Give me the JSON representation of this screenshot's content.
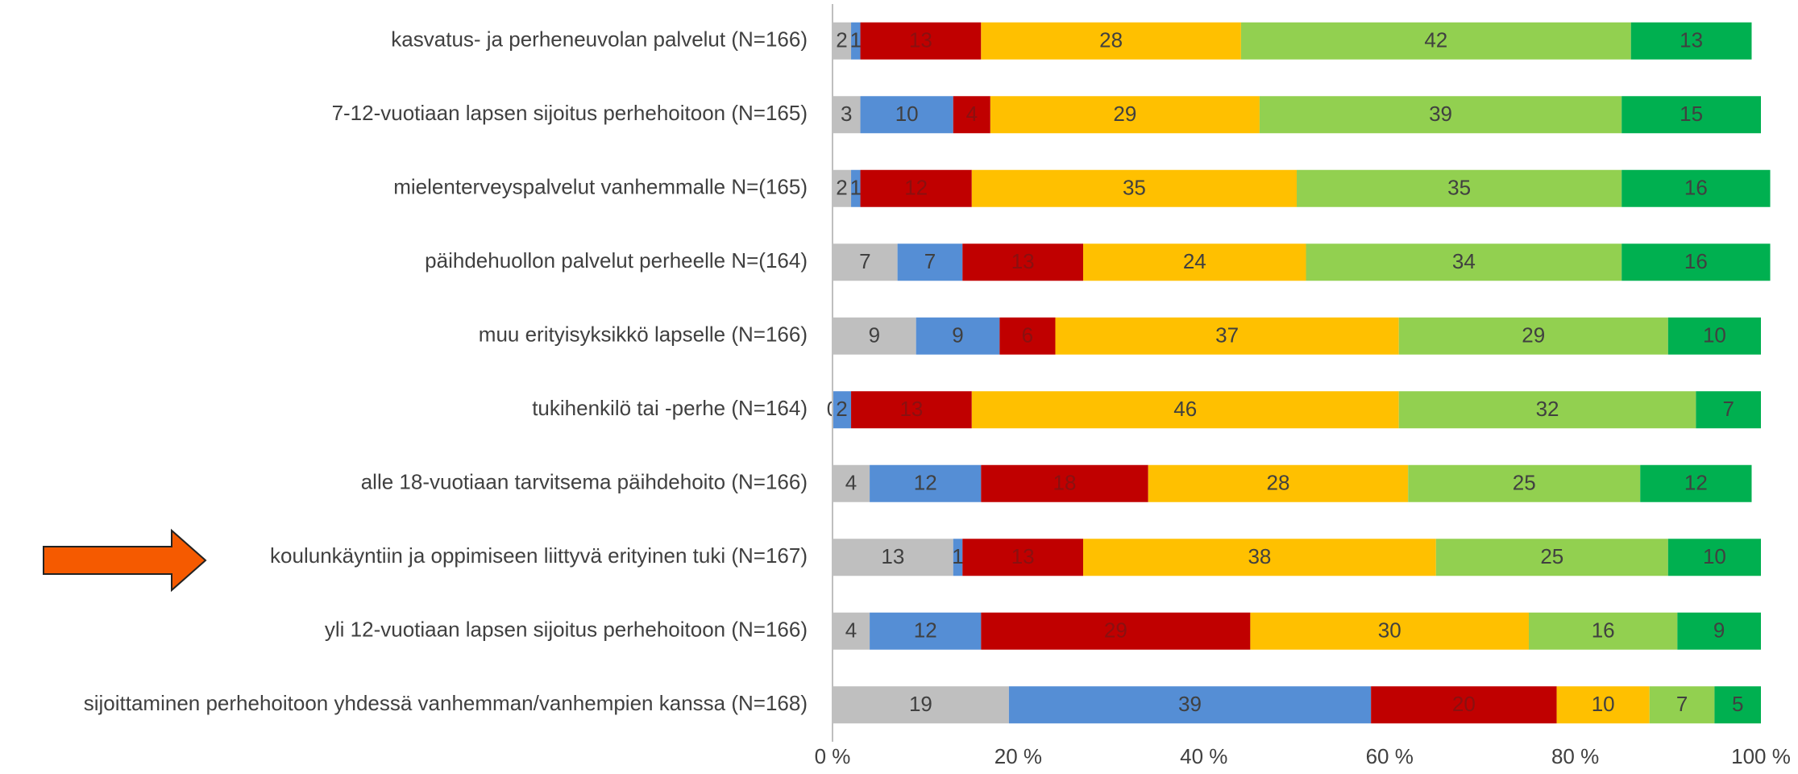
{
  "chart_data": {
    "type": "bar",
    "orientation": "horizontal",
    "stacked": true,
    "categories": [
      "kasvatus- ja perheneuvolan palvelut (N=166)",
      "7-12-vuotiaan lapsen sijoitus perhehoitoon (N=165)",
      "mielenterveyspalvelut vanhemmalle N=(165)",
      "päihdehuollon palvelut perheelle N=(164)",
      "muu erityisyksikkö lapselle (N=166)",
      "tukihenkilö tai -perhe (N=164)",
      "alle 18-vuotiaan tarvitsema päihdehoito (N=166)",
      "koulunkäyntiin ja oppimiseen liittyvä erityinen tuki (N=167)",
      "yli 12-vuotiaan lapsen sijoitus perhehoitoon (N=166)",
      "sijoittaminen perhehoitoon yhdessä vanhemman/vanhempien kanssa (N=168)"
    ],
    "series": [
      {
        "color": "#bfbfbf",
        "values": [
          2,
          3,
          2,
          7,
          9,
          0,
          4,
          13,
          4,
          19
        ]
      },
      {
        "color": "#558ed5",
        "values": [
          1,
          10,
          1,
          7,
          9,
          2,
          12,
          1,
          12,
          39
        ]
      },
      {
        "color": "#c00000",
        "values": [
          13,
          4,
          12,
          13,
          6,
          13,
          18,
          13,
          29,
          20
        ]
      },
      {
        "color": "#ffc000",
        "values": [
          28,
          29,
          35,
          24,
          37,
          46,
          28,
          38,
          30,
          10
        ]
      },
      {
        "color": "#92d050",
        "values": [
          42,
          39,
          35,
          34,
          29,
          32,
          25,
          25,
          16,
          7
        ]
      },
      {
        "color": "#00b050",
        "values": [
          13,
          15,
          16,
          16,
          10,
          7,
          12,
          10,
          9,
          5
        ]
      }
    ],
    "xlim": [
      0,
      100
    ],
    "xticks": [
      {
        "value": 0,
        "label": "0 %"
      },
      {
        "value": 20,
        "label": "20 %"
      },
      {
        "value": 40,
        "label": "40 %"
      },
      {
        "value": 60,
        "label": "60 %"
      },
      {
        "value": 80,
        "label": "80 %"
      },
      {
        "value": 100,
        "label": "100 %"
      }
    ],
    "grid": false
  }
}
